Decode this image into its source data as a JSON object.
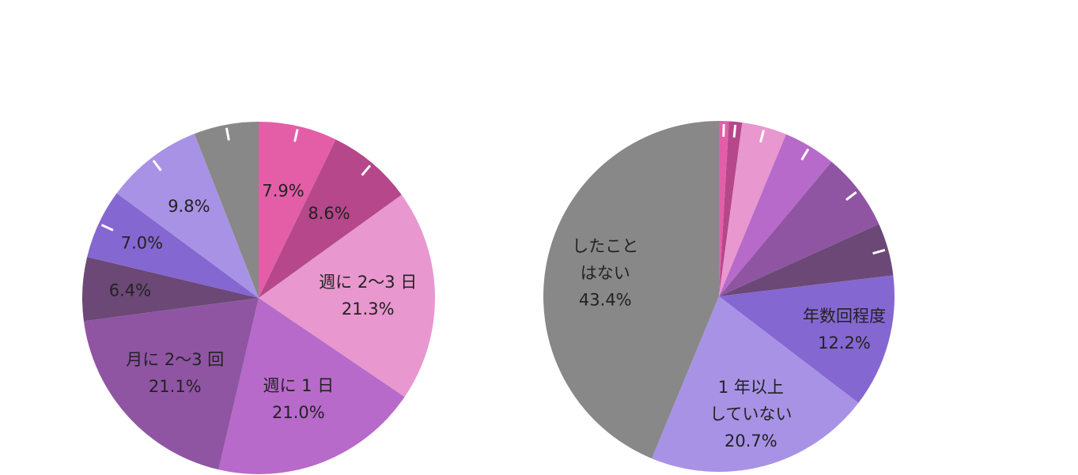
{
  "chart_data": [
    {
      "type": "pie",
      "title": "",
      "start_angle_deg": 0,
      "direction": "clockwise",
      "slices": [
        {
          "label": "",
          "value": 7.9,
          "value_label": "7.9%",
          "color": "#e35ea7"
        },
        {
          "label": "",
          "value": 8.6,
          "value_label": "8.6%",
          "color": "#b5478a"
        },
        {
          "label": "週に 2〜3 日",
          "value": 21.3,
          "value_label": "21.3%",
          "color": "#e897cf"
        },
        {
          "label": "週に 1 日",
          "value": 21.0,
          "value_label": "21.0%",
          "color": "#b76ac9"
        },
        {
          "label": "月に 2〜3 回",
          "value": 21.1,
          "value_label": "21.1%",
          "color": "#8f55a3"
        },
        {
          "label": "",
          "value": 6.4,
          "value_label": "6.4%",
          "color": "#6b4876"
        },
        {
          "label": "",
          "value": 7.0,
          "value_label": "7.0%",
          "color": "#8567d1"
        },
        {
          "label": "",
          "value": 9.8,
          "value_label": "9.8%",
          "color": "#a892e6"
        },
        {
          "label": "",
          "value": 6.5,
          "value_label": "",
          "color": "#888888"
        }
      ]
    },
    {
      "type": "pie",
      "title": "",
      "start_angle_deg": 0,
      "direction": "clockwise",
      "slices": [
        {
          "label": "",
          "value": 0.9,
          "value_label": "",
          "color": "#e35ea7"
        },
        {
          "label": "",
          "value": 1.2,
          "value_label": "",
          "color": "#b5478a"
        },
        {
          "label": "",
          "value": 4.1,
          "value_label": "",
          "color": "#e897cf"
        },
        {
          "label": "",
          "value": 4.8,
          "value_label": "",
          "color": "#b76ac9"
        },
        {
          "label": "",
          "value": 7.1,
          "value_label": "",
          "color": "#8f55a3"
        },
        {
          "label": "",
          "value": 4.8,
          "value_label": "",
          "color": "#6b4876"
        },
        {
          "label": "年数回程度",
          "value": 12.2,
          "value_label": "12.2%",
          "color": "#8567d1"
        },
        {
          "label": "1 年以上\nしていない",
          "value": 20.7,
          "value_label": "20.7%",
          "color": "#a892e6"
        },
        {
          "label": "したこと\nはない",
          "value": 43.4,
          "value_label": "43.4%",
          "color": "#888888"
        }
      ]
    }
  ]
}
